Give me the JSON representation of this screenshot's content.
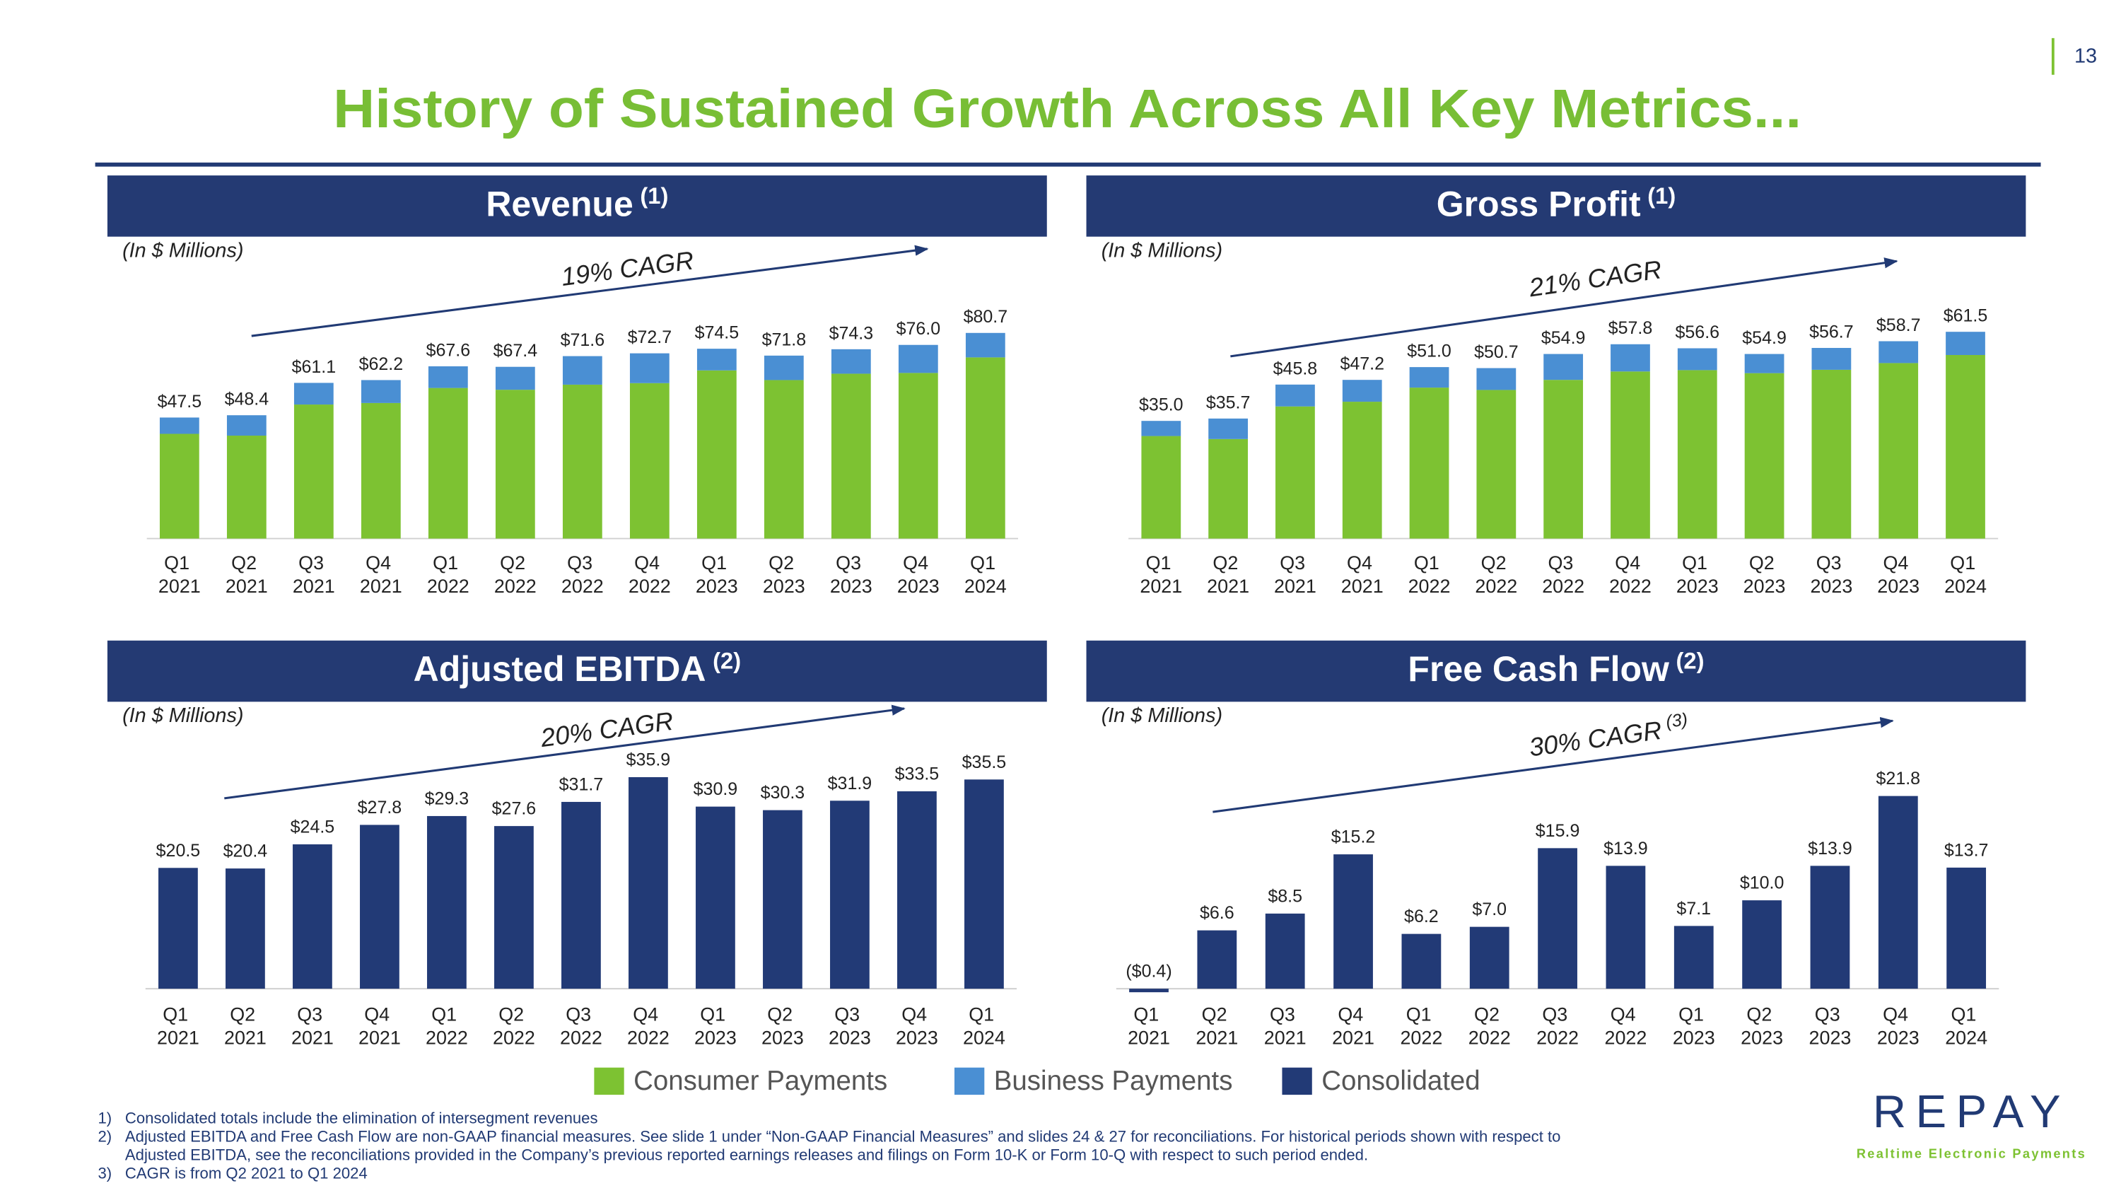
{
  "page_number": "13",
  "title": "History of Sustained Growth Across All Key Metrics...",
  "chart_data": [
    {
      "type": "stacked_bar",
      "title": "Revenue",
      "title_note": "(1)",
      "subtitle": "(In $ Millions)",
      "annotation": "19% CAGR",
      "categories": [
        "Q1 2021",
        "Q2 2021",
        "Q3 2021",
        "Q4 2021",
        "Q1 2022",
        "Q2 2022",
        "Q3 2022",
        "Q4 2022",
        "Q1 2023",
        "Q2 2023",
        "Q3 2023",
        "Q4 2023",
        "Q1 2024"
      ],
      "series": [
        {
          "name": "Consumer Payments",
          "color": "#7dc232",
          "values": [
            41.1,
            40.4,
            52.6,
            53.2,
            59.1,
            58.4,
            60.4,
            61.0,
            66.0,
            62.2,
            64.7,
            65.0,
            71.1
          ]
        },
        {
          "name": "Business Payments",
          "color": "#4a8fd3",
          "values": [
            6.4,
            8.0,
            8.5,
            9.0,
            8.5,
            9.0,
            11.2,
            11.7,
            8.5,
            9.6,
            9.6,
            11.0,
            9.6
          ]
        }
      ],
      "totals": [
        47.5,
        48.4,
        61.1,
        62.2,
        67.6,
        67.4,
        71.6,
        72.7,
        74.5,
        71.8,
        74.3,
        76.0,
        80.7
      ],
      "total_labels": [
        "$47.5",
        "$48.4",
        "$61.1",
        "$62.2",
        "$67.6",
        "$67.4",
        "$71.6",
        "$72.7",
        "$74.5",
        "$71.8",
        "$74.3",
        "$76.0",
        "$80.7"
      ],
      "ylim": [
        0,
        95
      ]
    },
    {
      "type": "stacked_bar",
      "title": "Gross Profit",
      "title_note": "(1)",
      "subtitle": "(In $ Millions)",
      "annotation": "21% CAGR",
      "categories": [
        "Q1 2021",
        "Q2 2021",
        "Q3 2021",
        "Q4 2021",
        "Q1 2022",
        "Q2 2022",
        "Q3 2022",
        "Q4 2022",
        "Q1 2023",
        "Q2 2023",
        "Q3 2023",
        "Q4 2023",
        "Q1 2024"
      ],
      "series": [
        {
          "name": "Consumer Payments",
          "color": "#7dc232",
          "values": [
            30.5,
            29.6,
            39.3,
            40.7,
            44.9,
            44.2,
            47.2,
            49.7,
            50.1,
            49.2,
            50.2,
            52.2,
            54.6
          ]
        },
        {
          "name": "Business Payments",
          "color": "#4a8fd3",
          "values": [
            4.5,
            6.1,
            6.5,
            6.5,
            6.1,
            6.5,
            7.7,
            8.1,
            6.5,
            5.7,
            6.5,
            6.5,
            6.9
          ]
        }
      ],
      "totals": [
        35.0,
        35.7,
        45.8,
        47.2,
        51.0,
        50.7,
        54.9,
        57.8,
        56.6,
        54.9,
        56.7,
        58.7,
        61.5
      ],
      "total_labels": [
        "$35.0",
        "$35.7",
        "$45.8",
        "$47.2",
        "$51.0",
        "$50.7",
        "$54.9",
        "$57.8",
        "$56.6",
        "$54.9",
        "$56.7",
        "$58.7",
        "$61.5"
      ],
      "ylim": [
        0,
        72
      ]
    },
    {
      "type": "bar",
      "title": "Adjusted EBITDA",
      "title_note": "(2)",
      "subtitle": "(In $ Millions)",
      "annotation": "20% CAGR",
      "categories": [
        "Q1 2021",
        "Q2 2021",
        "Q3 2021",
        "Q4 2021",
        "Q1 2022",
        "Q2 2022",
        "Q3 2022",
        "Q4 2022",
        "Q1 2023",
        "Q2 2023",
        "Q3 2023",
        "Q4 2023",
        "Q1 2024"
      ],
      "series": [
        {
          "name": "Consolidated",
          "color": "#223a76",
          "values": [
            20.5,
            20.4,
            24.5,
            27.8,
            29.3,
            27.6,
            31.7,
            35.9,
            30.9,
            30.3,
            31.9,
            33.5,
            35.5
          ],
          "value_labels": [
            "$20.5",
            "$20.4",
            "$24.5",
            "$27.8",
            "$29.3",
            "$27.6",
            "$31.7",
            "$35.9",
            "$30.9",
            "$30.3",
            "$31.9",
            "$33.5",
            "$35.5"
          ]
        }
      ],
      "ylim": [
        0,
        42
      ]
    },
    {
      "type": "bar",
      "title": "Free Cash Flow",
      "title_note": "(2)",
      "subtitle": "(In $ Millions)",
      "annotation": "30% CAGR",
      "annotation_note": "(3)",
      "categories": [
        "Q1 2021",
        "Q2 2021",
        "Q3 2021",
        "Q4 2021",
        "Q1 2022",
        "Q2 2022",
        "Q3 2022",
        "Q4 2022",
        "Q1 2023",
        "Q2 2023",
        "Q3 2023",
        "Q4 2023",
        "Q1 2024"
      ],
      "color": "#223a76",
      "values": [
        -0.4,
        6.6,
        8.5,
        15.2,
        6.2,
        7.0,
        15.9,
        13.9,
        7.1,
        10.0,
        13.9,
        21.8,
        13.7
      ],
      "value_labels": [
        "($0.4)",
        "$6.6",
        "$8.5",
        "$15.2",
        "$6.2",
        "$7.0",
        "$15.9",
        "$13.9",
        "$7.1",
        "$10.0",
        "$13.9",
        "$21.8",
        "$13.7"
      ],
      "ylim": [
        -1,
        27
      ]
    }
  ],
  "footnotes": [
    {
      "number": "1)",
      "lines": [
        "Consolidated totals include the elimination of intersegment revenues"
      ]
    },
    {
      "number": "2)",
      "lines": [
        "Adjusted EBITDA and Free Cash Flow are non-GAAP financial measures.  See slide 1 under “Non-GAAP Financial Measures” and slides 24 & 27 for reconciliations. For historical periods shown with respect to",
        "Adjusted EBITDA, see the reconciliations provided in the Company’s previous reported earnings releases and filings on Form 10-K or Form 10-Q with respect to such period ended."
      ]
    },
    {
      "number": "3)",
      "lines": [
        "CAGR is from Q2 2021 to Q1 2024"
      ]
    }
  ],
  "logo": {
    "name": "REPAY",
    "tagline": "Realtime Electronic Payments"
  }
}
